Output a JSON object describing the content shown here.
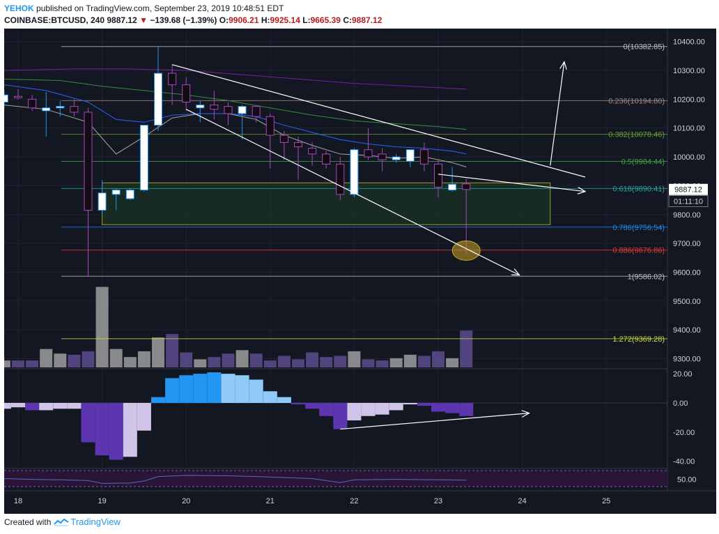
{
  "header": {
    "user": "YEHOK",
    "published": " published on TradingView.com, September 23, 2019 10:48:51 EDT",
    "symbol": "COINBASE:BTCUSD, 240",
    "last": "9887.12",
    "change": "−139.68 (−1.39%)",
    "o_label": "O:",
    "o_value": "9906.21",
    "h_label": "H:",
    "h_value": "9925.14",
    "l_label": "L:",
    "l_value": "9665.39",
    "c_label": "C:",
    "c_value": "9887.12"
  },
  "footer": {
    "created": "Created with",
    "brand": "TradingView"
  },
  "price_tag": {
    "value": "9887.12",
    "countdown": "01:11:10"
  },
  "colors": {
    "background": "#131722",
    "up": "#ffffff",
    "down": "#120d14",
    "fib_line": "#b0b0b0",
    "zone": "#1b3b25",
    "volume_up": "#9e9e9e",
    "volume_down": "#5e4c8e",
    "macd_blue": "#2196f3",
    "macd_light": "#90caf9",
    "macd_purple": "#5e35b1",
    "macd_lilac": "#d1c4e9"
  },
  "chart_data": {
    "type": "candlestick",
    "x_ticks": [
      {
        "label": "18",
        "t": 0
      },
      {
        "label": "19",
        "t": 6
      },
      {
        "label": "20",
        "t": 12
      },
      {
        "label": "21",
        "t": 18
      },
      {
        "label": "22",
        "t": 24
      },
      {
        "label": "23",
        "t": 30
      },
      {
        "label": "24",
        "t": 36
      },
      {
        "label": "25",
        "t": 42
      }
    ],
    "price_axis": {
      "ticks": [
        10400,
        10300,
        10200,
        10100,
        10000,
        9900,
        9800,
        9700,
        9600,
        9500,
        9400,
        9300
      ],
      "range": [
        9270,
        10445
      ]
    },
    "candles": [
      {
        "t": -1,
        "o": 10190,
        "h": 10230,
        "l": 10170,
        "c": 10215
      },
      {
        "t": 0,
        "o": 10210,
        "h": 10235,
        "l": 10200,
        "c": 10205
      },
      {
        "t": 1,
        "o": 10200,
        "h": 10215,
        "l": 10160,
        "c": 10170
      },
      {
        "t": 2,
        "o": 10160,
        "h": 10225,
        "l": 10070,
        "c": 10170
      },
      {
        "t": 3,
        "o": 10170,
        "h": 10195,
        "l": 10140,
        "c": 10175
      },
      {
        "t": 4,
        "o": 10175,
        "h": 10200,
        "l": 10140,
        "c": 10155
      },
      {
        "t": 5,
        "o": 10155,
        "h": 10170,
        "l": 9586,
        "c": 9815
      },
      {
        "t": 6,
        "o": 9815,
        "h": 9920,
        "l": 9800,
        "c": 9875
      },
      {
        "t": 7,
        "o": 9870,
        "h": 9890,
        "l": 9815,
        "c": 9885
      },
      {
        "t": 8,
        "o": 9855,
        "h": 9890,
        "l": 9850,
        "c": 9885
      },
      {
        "t": 9,
        "o": 9885,
        "h": 10110,
        "l": 9880,
        "c": 10110
      },
      {
        "t": 10,
        "o": 10110,
        "h": 10382,
        "l": 10090,
        "c": 10290
      },
      {
        "t": 11,
        "o": 10290,
        "h": 10320,
        "l": 10180,
        "c": 10250
      },
      {
        "t": 12,
        "o": 10250,
        "h": 10275,
        "l": 10160,
        "c": 10190
      },
      {
        "t": 13,
        "o": 10170,
        "h": 10195,
        "l": 10120,
        "c": 10180
      },
      {
        "t": 14,
        "o": 10180,
        "h": 10230,
        "l": 10130,
        "c": 10165
      },
      {
        "t": 15,
        "o": 10175,
        "h": 10190,
        "l": 10110,
        "c": 10150
      },
      {
        "t": 16,
        "o": 10150,
        "h": 10180,
        "l": 10060,
        "c": 10175
      },
      {
        "t": 17,
        "o": 10175,
        "h": 10180,
        "l": 10120,
        "c": 10140
      },
      {
        "t": 18,
        "o": 10140,
        "h": 10150,
        "l": 9960,
        "c": 10075
      },
      {
        "t": 19,
        "o": 10075,
        "h": 10090,
        "l": 9990,
        "c": 10050
      },
      {
        "t": 20,
        "o": 10050,
        "h": 10070,
        "l": 9920,
        "c": 10035
      },
      {
        "t": 21,
        "o": 10030,
        "h": 10050,
        "l": 9970,
        "c": 10010
      },
      {
        "t": 22,
        "o": 10010,
        "h": 10020,
        "l": 9960,
        "c": 9975
      },
      {
        "t": 23,
        "o": 9975,
        "h": 10000,
        "l": 9850,
        "c": 9870
      },
      {
        "t": 24,
        "o": 9870,
        "h": 10030,
        "l": 9860,
        "c": 10025
      },
      {
        "t": 25,
        "o": 10025,
        "h": 10100,
        "l": 9990,
        "c": 10000
      },
      {
        "t": 26,
        "o": 10010,
        "h": 10030,
        "l": 9950,
        "c": 9990
      },
      {
        "t": 27,
        "o": 9990,
        "h": 10010,
        "l": 9980,
        "c": 10000
      },
      {
        "t": 28,
        "o": 9985,
        "h": 10020,
        "l": 9965,
        "c": 10025
      },
      {
        "t": 29,
        "o": 10025,
        "h": 10050,
        "l": 9950,
        "c": 9975
      },
      {
        "t": 30,
        "o": 9975,
        "h": 9990,
        "l": 9860,
        "c": 9895
      },
      {
        "t": 31,
        "o": 9885,
        "h": 9965,
        "l": 9880,
        "c": 9905
      },
      {
        "t": 32,
        "o": 9906.21,
        "h": 9925.14,
        "l": 9665.39,
        "c": 9887.12
      }
    ],
    "moving_averages": [
      {
        "color": "#a8a8a8",
        "points": [
          [
            -1,
            10180
          ],
          [
            2,
            10165
          ],
          [
            5,
            10120
          ],
          [
            7,
            10010
          ],
          [
            9,
            10070
          ],
          [
            11,
            10135
          ],
          [
            13,
            10150
          ],
          [
            15,
            10150
          ],
          [
            17,
            10130
          ],
          [
            19,
            10075
          ],
          [
            21,
            10040
          ],
          [
            23,
            10010
          ],
          [
            25,
            10005
          ],
          [
            27,
            9995
          ],
          [
            29,
            10000
          ],
          [
            31,
            9980
          ],
          [
            32,
            9965
          ]
        ]
      },
      {
        "color": "#2962ff",
        "points": [
          [
            -1,
            10250
          ],
          [
            2,
            10230
          ],
          [
            5,
            10190
          ],
          [
            7,
            10130
          ],
          [
            9,
            10120
          ],
          [
            11,
            10145
          ],
          [
            13,
            10150
          ],
          [
            15,
            10150
          ],
          [
            17,
            10140
          ],
          [
            19,
            10110
          ],
          [
            21,
            10085
          ],
          [
            23,
            10060
          ],
          [
            25,
            10045
          ],
          [
            27,
            10035
          ],
          [
            29,
            10030
          ],
          [
            31,
            10020
          ],
          [
            32,
            10010
          ]
        ]
      },
      {
        "color": "#388e3c",
        "points": [
          [
            -1,
            10270
          ],
          [
            3,
            10265
          ],
          [
            6,
            10245
          ],
          [
            9,
            10230
          ],
          [
            12,
            10215
          ],
          [
            15,
            10195
          ],
          [
            18,
            10170
          ],
          [
            21,
            10145
          ],
          [
            24,
            10125
          ],
          [
            27,
            10115
          ],
          [
            30,
            10105
          ],
          [
            32,
            10095
          ]
        ]
      },
      {
        "color": "#7b1fa2",
        "points": [
          [
            -1,
            10300
          ],
          [
            4,
            10305
          ],
          [
            8,
            10305
          ],
          [
            12,
            10300
          ],
          [
            16,
            10285
          ],
          [
            20,
            10270
          ],
          [
            24,
            10255
          ],
          [
            28,
            10245
          ],
          [
            32,
            10235
          ]
        ]
      }
    ],
    "fibonacci": [
      {
        "ratio": "0",
        "price": 10382.85,
        "label": "0(10382.85)",
        "color": "#c0c0c0"
      },
      {
        "ratio": "0.236",
        "price": 10194.8,
        "label": "0.236(10194.80)",
        "color": "#a1887f"
      },
      {
        "ratio": "0.382",
        "price": 10078.46,
        "label": "0.382(10078.46)",
        "color": "#689f38"
      },
      {
        "ratio": "0.5",
        "price": 9984.44,
        "label": "0.5(9984.44)",
        "color": "#43a047"
      },
      {
        "ratio": "0.618",
        "price": 9890.41,
        "label": "0.618(9890.41)",
        "color": "#26a69a"
      },
      {
        "ratio": "0.786",
        "price": 9756.54,
        "label": "0.786(9756.54)",
        "color": "#1e88e5"
      },
      {
        "ratio": "0.886",
        "price": 9676.86,
        "label": "0.886(9676.86)",
        "color": "#e53935"
      },
      {
        "ratio": "1",
        "price": 9586.02,
        "label": "1(9586.02)",
        "color": "#c0c0c0"
      },
      {
        "ratio": "1.272",
        "price": 9369.28,
        "label": "1.272(9369.28)",
        "color": "#cddc39"
      }
    ],
    "zone": {
      "t_start": 6,
      "t_end": 38,
      "price_top": 9910,
      "price_bottom": 9765
    },
    "trendlines": [
      {
        "from": [
          11,
          10320
        ],
        "to": [
          40.5,
          9930
        ],
        "arrow": false
      },
      {
        "from": [
          12,
          10165
        ],
        "to": [
          35.8,
          9590
        ],
        "arrow": true
      },
      {
        "from": [
          30,
          9940
        ],
        "to": [
          40.5,
          9880
        ],
        "arrow": true
      },
      {
        "from": [
          38,
          9970
        ],
        "to": [
          39,
          10330
        ],
        "arrow": true
      }
    ],
    "highlight": {
      "t": 32,
      "price": 9675
    },
    "volume": [
      30,
      30,
      30,
      80,
      60,
      55,
      70,
      350,
      80,
      45,
      70,
      130,
      145,
      65,
      35,
      45,
      60,
      75,
      60,
      30,
      50,
      35,
      65,
      45,
      50,
      70,
      35,
      30,
      40,
      55,
      50,
      70,
      40,
      160
    ],
    "macd": {
      "ticks": [
        20,
        0,
        -20,
        -40
      ],
      "range": [
        -45,
        22
      ],
      "bars": [
        {
          "t": -1,
          "v": -4,
          "c": "#d1c4e9"
        },
        {
          "t": 0,
          "v": -3,
          "c": "#d1c4e9"
        },
        {
          "t": 1,
          "v": -5,
          "c": "#5e35b1"
        },
        {
          "t": 2,
          "v": -5,
          "c": "#d1c4e9"
        },
        {
          "t": 3,
          "v": -4,
          "c": "#d1c4e9"
        },
        {
          "t": 4,
          "v": -4,
          "c": "#d1c4e9"
        },
        {
          "t": 5,
          "v": -27,
          "c": "#5e35b1"
        },
        {
          "t": 6,
          "v": -36,
          "c": "#5e35b1"
        },
        {
          "t": 7,
          "v": -39,
          "c": "#5e35b1"
        },
        {
          "t": 8,
          "v": -37,
          "c": "#d1c4e9"
        },
        {
          "t": 9,
          "v": -19,
          "c": "#d1c4e9"
        },
        {
          "t": 10,
          "v": 4,
          "c": "#2196f3"
        },
        {
          "t": 11,
          "v": 17,
          "c": "#2196f3"
        },
        {
          "t": 12,
          "v": 19,
          "c": "#2196f3"
        },
        {
          "t": 13,
          "v": 20,
          "c": "#2196f3"
        },
        {
          "t": 14,
          "v": 21,
          "c": "#2196f3"
        },
        {
          "t": 15,
          "v": 20,
          "c": "#90caf9"
        },
        {
          "t": 16,
          "v": 19,
          "c": "#90caf9"
        },
        {
          "t": 17,
          "v": 16,
          "c": "#90caf9"
        },
        {
          "t": 18,
          "v": 8,
          "c": "#90caf9"
        },
        {
          "t": 19,
          "v": 4,
          "c": "#90caf9"
        },
        {
          "t": 20,
          "v": -1,
          "c": "#5e35b1"
        },
        {
          "t": 21,
          "v": -4,
          "c": "#5e35b1"
        },
        {
          "t": 22,
          "v": -9,
          "c": "#5e35b1"
        },
        {
          "t": 23,
          "v": -18,
          "c": "#5e35b1"
        },
        {
          "t": 24,
          "v": -12,
          "c": "#d1c4e9"
        },
        {
          "t": 25,
          "v": -9,
          "c": "#d1c4e9"
        },
        {
          "t": 26,
          "v": -8,
          "c": "#d1c4e9"
        },
        {
          "t": 27,
          "v": -5,
          "c": "#d1c4e9"
        },
        {
          "t": 28,
          "v": -1,
          "c": "#d1c4e9"
        },
        {
          "t": 29,
          "v": -2,
          "c": "#5e35b1"
        },
        {
          "t": 30,
          "v": -6,
          "c": "#5e35b1"
        },
        {
          "t": 31,
          "v": -7,
          "c": "#5e35b1"
        },
        {
          "t": 32,
          "v": -9,
          "c": "#5e35b1"
        }
      ],
      "trendline": {
        "from": [
          23,
          -18
        ],
        "to": [
          36.5,
          -7
        ]
      }
    },
    "rsi": {
      "tick": "50.00",
      "points": [
        [
          -1,
          50
        ],
        [
          1,
          48
        ],
        [
          3,
          47
        ],
        [
          5,
          45
        ],
        [
          6,
          38
        ],
        [
          8,
          39
        ],
        [
          9,
          44
        ],
        [
          10,
          55
        ],
        [
          12,
          58
        ],
        [
          15,
          57
        ],
        [
          18,
          54
        ],
        [
          21,
          50
        ],
        [
          23,
          40
        ],
        [
          24,
          47
        ],
        [
          27,
          48
        ],
        [
          30,
          47
        ],
        [
          32,
          46
        ]
      ]
    }
  }
}
